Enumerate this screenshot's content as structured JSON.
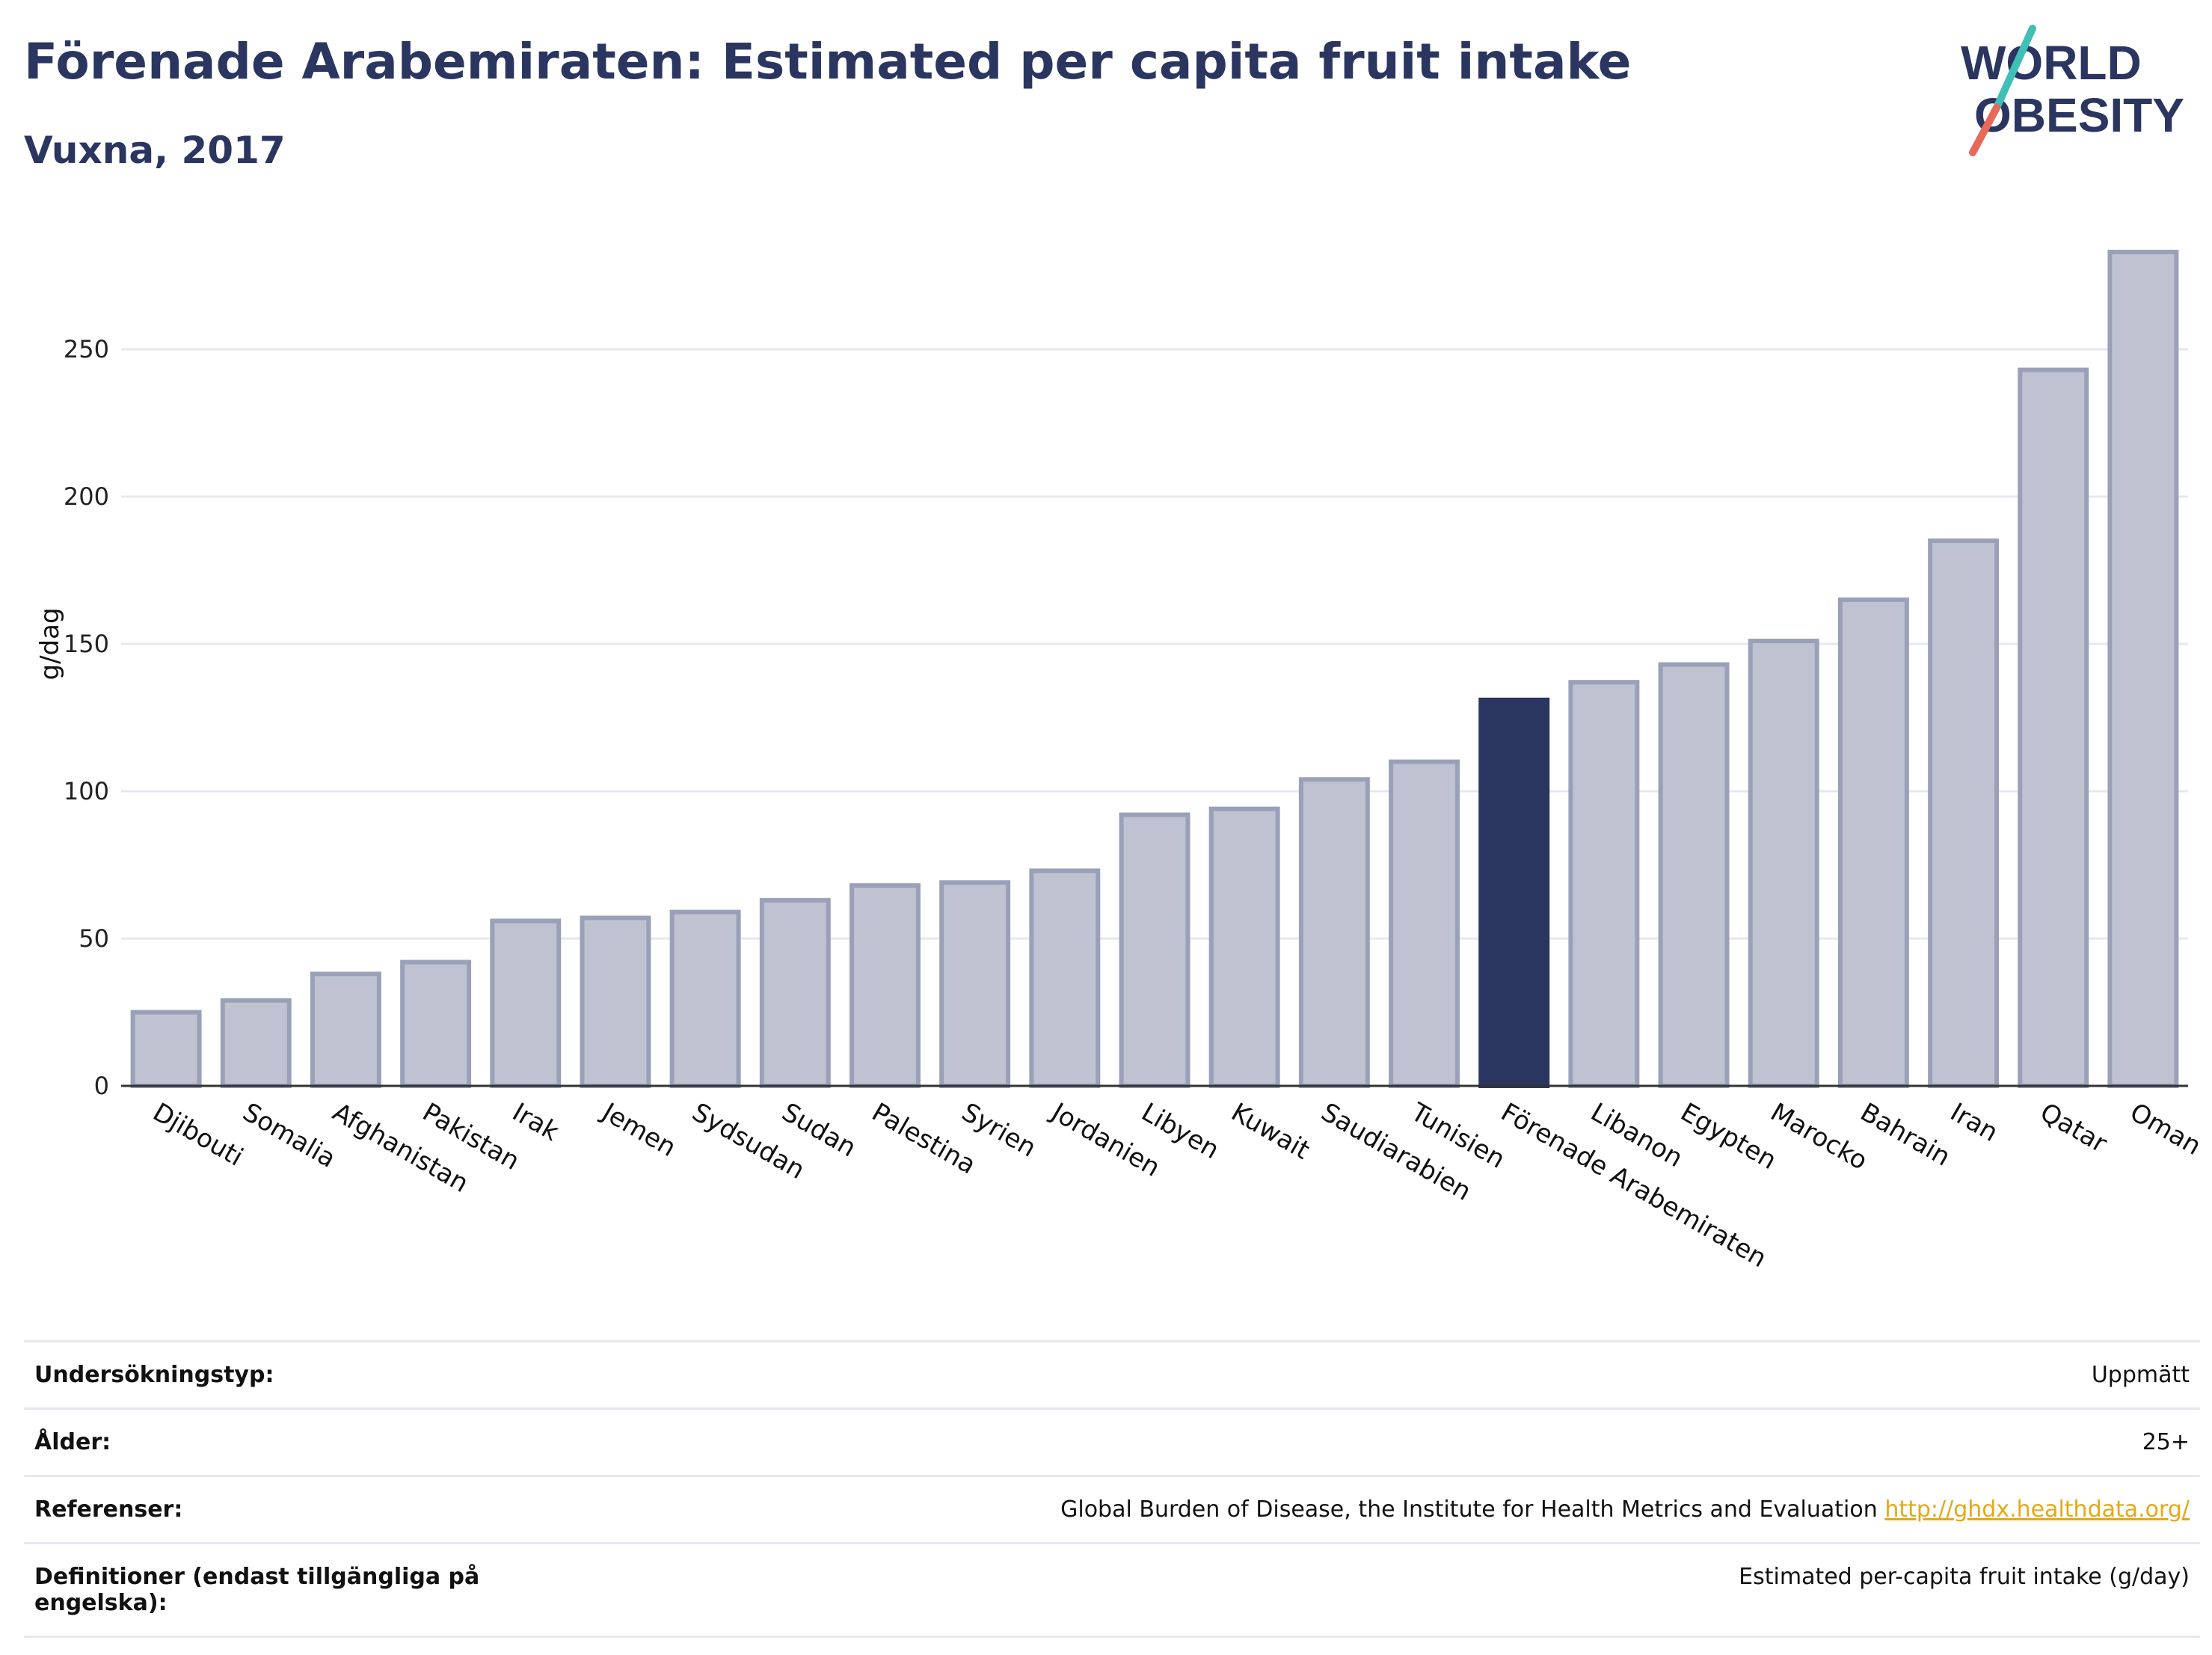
{
  "header": {
    "title": "Förenade Arabemiraten: Estimated per capita fruit intake",
    "subtitle": "Vuxna, 2017"
  },
  "logo": {
    "line1": "WORLD",
    "line2": "OBESITY"
  },
  "colors": {
    "highlight": "#2a3560",
    "bar_fill": "#bfc3d1",
    "bar_stroke": "#9aa0b8",
    "grid": "#e6e8f0",
    "logo_teal": "#3fbfb5",
    "logo_coral": "#e8685a",
    "link": "#e6a817"
  },
  "chart_data": {
    "type": "bar",
    "title": "",
    "xlabel": "",
    "ylabel": "g/dag",
    "ylim": [
      0,
      285
    ],
    "yticks": [
      0,
      50,
      100,
      150,
      200,
      250
    ],
    "grid": true,
    "highlight": "Förenade Arabemiraten",
    "categories": [
      "Djibouti",
      "Somalia",
      "Afghanistan",
      "Pakistan",
      "Irak",
      "Jemen",
      "Sydsudan",
      "Sudan",
      "Palestina",
      "Syrien",
      "Jordanien",
      "Libyen",
      "Kuwait",
      "Saudiarabien",
      "Tunisien",
      "Förenade Arabemiraten",
      "Libanon",
      "Egypten",
      "Marocko",
      "Bahrain",
      "Iran",
      "Qatar",
      "Oman"
    ],
    "values": [
      25,
      29,
      38,
      42,
      56,
      57,
      59,
      63,
      68,
      69,
      73,
      92,
      94,
      104,
      110,
      131,
      137,
      143,
      151,
      165,
      185,
      243,
      283
    ]
  },
  "footer": {
    "rows": [
      {
        "label": "Undersökningstyp:",
        "value": "Uppmätt"
      },
      {
        "label": "Ålder:",
        "value": "25+"
      },
      {
        "label": "Referenser:",
        "value": "Global Burden of Disease, the Institute for Health Metrics and Evaluation",
        "link": "http://ghdx.healthdata.org/"
      },
      {
        "label": "Definitioner (endast tillgängliga på engelska):",
        "value": "Estimated per-capita fruit intake (g/day)"
      }
    ]
  }
}
